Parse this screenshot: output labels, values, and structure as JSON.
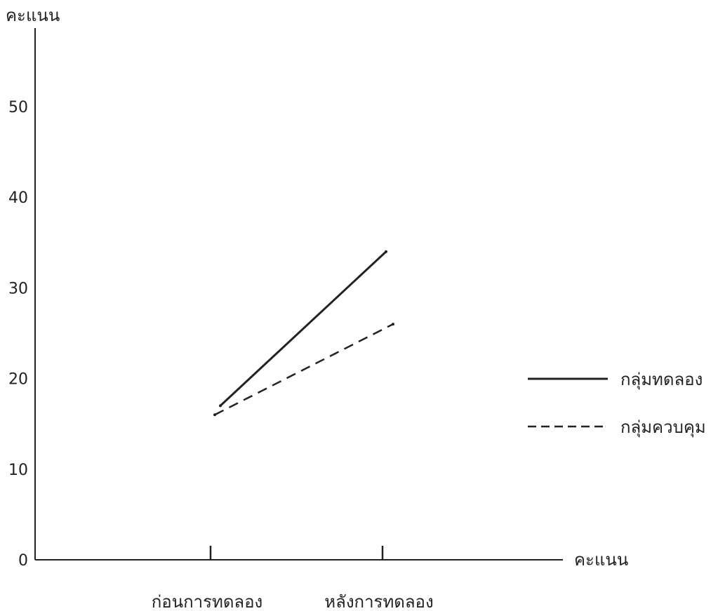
{
  "chart_data": {
    "type": "line",
    "title": "",
    "ylabel": "คะแนน",
    "xlabel": "คะแนน",
    "categories": [
      "ก่อนการทดลอง",
      "หลังการทดลอง"
    ],
    "ylim": [
      0,
      50
    ],
    "yticks": [
      0,
      10,
      20,
      30,
      40,
      50
    ],
    "grid": false,
    "legend_position": "right",
    "series": [
      {
        "name": "กลุ่มทดลอง",
        "values": [
          17,
          34
        ],
        "line_style": "solid",
        "color": "#222222"
      },
      {
        "name": "กลุ่มควบคุม",
        "values": [
          16,
          26
        ],
        "line_style": "dashed",
        "color": "#222222"
      }
    ]
  }
}
